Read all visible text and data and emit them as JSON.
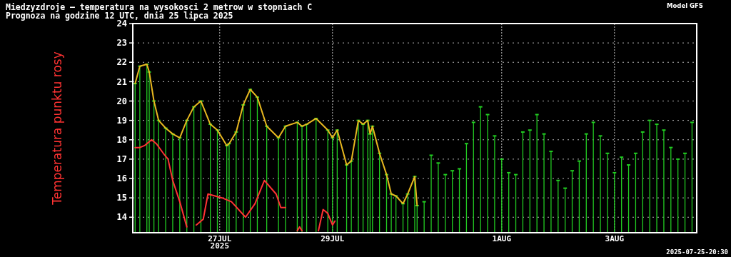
{
  "chart_data": {
    "type": "lollipop",
    "title": "Miedzyzdroje — temperatura na wysokosci 2 metrow w stopniach C",
    "subtitle": "Prognoza na godzine 12 UTC, dnia 25 lipca 2025",
    "annotations": [
      "Model GFS",
      "2025-07-25-20:30"
    ],
    "xlim": [
      "2025-07-25T11:00",
      "2025-08-04T11:00"
    ],
    "xticks": [
      {
        "value": "2025-07-27",
        "label": "27JUL\n2025"
      },
      {
        "value": "2025-07-29",
        "label": "29JUL"
      },
      {
        "value": "2025-08-01",
        "label": "1AUG"
      },
      {
        "value": "2025-08-03",
        "label": "3AUG"
      }
    ],
    "ylim": [
      13.2,
      24
    ],
    "yticks": [
      14,
      15,
      16,
      17,
      18,
      19,
      20,
      21,
      22,
      23,
      24
    ],
    "grid": true,
    "legend": "left",
    "series": [
      {
        "color": "#22cc22",
        "x": [
          "2025-07-25T12:00",
          "2025-07-25T14:00",
          "2025-07-25T17:00",
          "2025-07-25T18:00",
          "2025-07-25T20:00",
          "2025-07-25T22:00",
          "2025-07-26T01:00",
          "2025-07-26T04:00",
          "2025-07-26T07:00",
          "2025-07-26T10:00",
          "2025-07-26T13:00",
          "2025-07-26T16:00",
          "2025-07-26T20:00",
          "2025-07-26T23:00",
          "2025-07-27T03:00",
          "2025-07-27T04:00",
          "2025-07-27T07:00",
          "2025-07-27T10:00",
          "2025-07-27T13:00",
          "2025-07-27T16:00",
          "2025-07-27T20:00",
          "2025-07-28T01:00",
          "2025-07-28T04:00",
          "2025-07-28T09:00",
          "2025-07-28T11:00",
          "2025-07-28T13:00",
          "2025-07-28T17:00",
          "2025-07-28T22:00",
          "2025-07-29T00:00",
          "2025-07-29T02:00",
          "2025-07-29T06:00",
          "2025-07-29T08:00",
          "2025-07-29T11:00",
          "2025-07-29T13:00",
          "2025-07-29T15:00",
          "2025-07-29T16:00",
          "2025-07-29T17:00",
          "2025-07-29T20:00",
          "2025-07-29T23:00",
          "2025-07-30T01:00",
          "2025-07-30T03:00",
          "2025-07-30T06:00",
          "2025-07-30T08:00",
          "2025-07-30T11:00",
          "2025-07-30T12:00",
          "2025-07-30T15:00",
          "2025-07-30T18:00",
          "2025-07-30T21:00",
          "2025-07-31T00:00",
          "2025-07-31T03:00",
          "2025-07-31T06:00",
          "2025-07-31T09:00",
          "2025-07-31T12:00",
          "2025-07-31T15:00",
          "2025-07-31T18:00",
          "2025-07-31T21:00",
          "2025-08-01T00:00",
          "2025-08-01T03:00",
          "2025-08-01T06:00",
          "2025-08-01T09:00",
          "2025-08-01T12:00",
          "2025-08-01T15:00",
          "2025-08-01T18:00",
          "2025-08-01T21:00",
          "2025-08-02T00:00",
          "2025-08-02T03:00",
          "2025-08-02T06:00",
          "2025-08-02T09:00",
          "2025-08-02T12:00",
          "2025-08-02T15:00",
          "2025-08-02T18:00",
          "2025-08-02T21:00",
          "2025-08-03T00:00",
          "2025-08-03T03:00",
          "2025-08-03T06:00",
          "2025-08-03T09:00",
          "2025-08-03T12:00",
          "2025-08-03T15:00",
          "2025-08-03T18:00",
          "2025-08-03T21:00",
          "2025-08-04T00:00",
          "2025-08-04T03:00",
          "2025-08-04T06:00",
          "2025-08-04T09:00"
        ],
        "values": [
          20.9,
          21.8,
          21.9,
          21.5,
          20.0,
          19.0,
          18.6,
          18.3,
          18.1,
          19.0,
          19.7,
          20.0,
          18.8,
          18.5,
          17.7,
          17.8,
          18.4,
          19.8,
          20.6,
          20.2,
          18.7,
          18.1,
          18.7,
          18.9,
          18.7,
          18.8,
          19.1,
          18.5,
          18.1,
          18.5,
          16.7,
          16.9,
          19.0,
          18.8,
          19.0,
          18.3,
          18.7,
          17.3,
          16.2,
          15.2,
          15.1,
          14.7,
          15.2,
          16.1,
          14.6,
          14.8,
          17.2,
          16.8,
          16.2,
          16.4,
          16.5,
          17.8,
          18.9,
          19.7,
          19.3,
          18.2,
          17.0,
          16.3,
          16.2,
          18.4,
          18.5,
          19.3,
          18.3,
          17.4,
          15.9,
          15.5,
          16.4,
          16.9,
          18.3,
          18.9,
          18.2,
          17.3,
          16.3,
          17.1,
          16.7,
          17.3,
          18.4,
          19.0,
          18.8,
          18.5,
          17.6,
          17.0,
          17.3,
          18.9
        ]
      },
      {
        "type": "line",
        "color": "#e8b820",
        "x": [
          "2025-07-25T12:00",
          "2025-07-25T14:00",
          "2025-07-25T17:00",
          "2025-07-25T18:00",
          "2025-07-25T20:00",
          "2025-07-25T22:00",
          "2025-07-26T01:00",
          "2025-07-26T04:00",
          "2025-07-26T07:00",
          "2025-07-26T10:00",
          "2025-07-26T13:00",
          "2025-07-26T16:00",
          "2025-07-26T20:00",
          "2025-07-26T23:00",
          "2025-07-27T03:00",
          "2025-07-27T04:00",
          "2025-07-27T07:00",
          "2025-07-27T10:00",
          "2025-07-27T13:00",
          "2025-07-27T16:00",
          "2025-07-27T20:00",
          "2025-07-28T01:00",
          "2025-07-28T04:00",
          "2025-07-28T09:00",
          "2025-07-28T11:00",
          "2025-07-28T13:00",
          "2025-07-28T17:00",
          "2025-07-28T22:00",
          "2025-07-29T00:00",
          "2025-07-29T02:00",
          "2025-07-29T06:00",
          "2025-07-29T08:00",
          "2025-07-29T11:00",
          "2025-07-29T13:00",
          "2025-07-29T15:00",
          "2025-07-29T16:00",
          "2025-07-29T17:00",
          "2025-07-29T20:00",
          "2025-07-29T23:00",
          "2025-07-30T01:00",
          "2025-07-30T03:00",
          "2025-07-30T06:00",
          "2025-07-30T08:00",
          "2025-07-30T11:00",
          "2025-07-30T12:00"
        ],
        "values": [
          20.9,
          21.8,
          21.9,
          21.5,
          20.0,
          19.0,
          18.6,
          18.3,
          18.1,
          19.0,
          19.7,
          20.0,
          18.8,
          18.5,
          17.7,
          17.8,
          18.4,
          19.8,
          20.6,
          20.2,
          18.7,
          18.1,
          18.7,
          18.9,
          18.7,
          18.8,
          19.1,
          18.5,
          18.1,
          18.5,
          16.7,
          16.9,
          19.0,
          18.8,
          19.0,
          18.3,
          18.7,
          17.3,
          16.2,
          15.2,
          15.1,
          14.7,
          15.2,
          16.1,
          14.6
        ]
      },
      {
        "type": "line",
        "name": "Temperatura punktu rosy",
        "color": "#ff3333",
        "x": [
          "2025-07-25T12:00",
          "2025-07-25T14:00",
          "2025-07-25T16:00",
          "2025-07-25T19:00",
          "2025-07-25T21:00",
          "2025-07-26T00:00",
          "2025-07-26T02:00",
          "2025-07-26T04:00",
          "2025-07-26T07:00",
          "2025-07-26T10:00",
          "2025-07-26T12:00",
          "2025-07-26T14:00",
          "2025-07-26T17:00",
          "2025-07-26T19:00",
          "2025-07-26T22:00",
          "2025-07-27T01:00",
          "2025-07-27T05:00",
          "2025-07-27T11:00",
          "2025-07-27T15:00",
          "2025-07-27T19:00",
          "2025-07-28T00:00",
          "2025-07-28T02:00",
          "2025-07-28T04:00",
          "2025-07-28T07:00",
          "2025-07-28T09:00",
          "2025-07-28T10:00",
          "2025-07-28T11:00",
          "2025-07-28T14:00",
          "2025-07-28T18:00",
          "2025-07-28T20:00",
          "2025-07-28T22:00",
          "2025-07-29T00:00",
          "2025-07-29T01:00"
        ],
        "values": [
          17.6,
          17.6,
          17.7,
          18.0,
          17.8,
          17.3,
          17.0,
          15.9,
          14.8,
          13.5,
          null,
          13.6,
          13.9,
          15.2,
          15.1,
          15.0,
          14.8,
          14.0,
          14.7,
          15.9,
          15.2,
          14.5,
          14.5,
          null,
          13.3,
          13.5,
          13.3,
          null,
          13.3,
          14.4,
          14.2,
          13.6,
          13.8
        ]
      }
    ]
  }
}
